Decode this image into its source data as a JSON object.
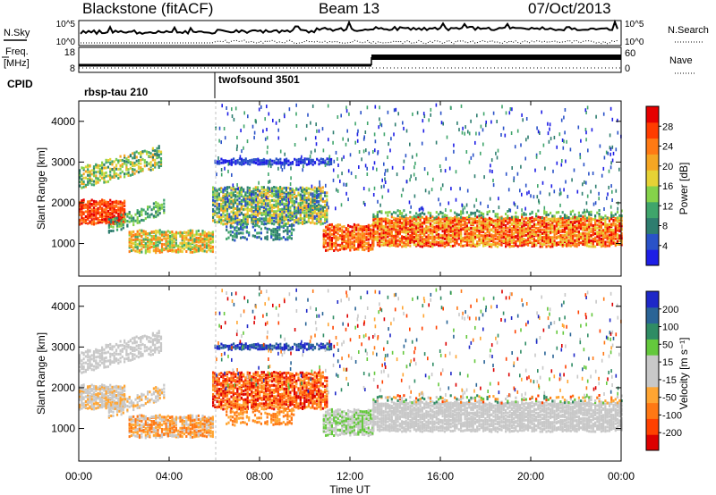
{
  "header": {
    "site": "Blackstone (fitACF)",
    "beam": "Beam 13",
    "date": "07/Oct/2013"
  },
  "left_labels": {
    "nsky": "N.Sky",
    "freq_line1": "Freq.",
    "freq_line2": "[MHz]",
    "cpid": "CPID"
  },
  "right_labels": {
    "nsearch": "N.Search",
    "nave": "Nave"
  },
  "cpid_segments": [
    "rbsp-tau 210",
    "twofsound 3501"
  ],
  "xaxis_label": "Time UT",
  "colors": {
    "power": [
      "#1e1ee6",
      "#2a52c8",
      "#2e7d6f",
      "#3fa56b",
      "#85d24a",
      "#e6d235",
      "#f5a623",
      "#ff7a14",
      "#ff3c00",
      "#e60000"
    ],
    "velocity": [
      "#1e28c8",
      "#2a6496",
      "#2f8c64",
      "#64c83c",
      "#c8c8c8",
      "#c8c8c8",
      "#ffa532",
      "#ff7814",
      "#ff4100",
      "#dc0000"
    ]
  },
  "chart_data": [
    {
      "type": "line",
      "name": "noise-panel",
      "ylabel_left": "N.Sky",
      "ylabel_right": "N.Search",
      "left_ticks": [
        "10^5",
        "10^0"
      ],
      "right_ticks": [
        "10^5",
        "10^0"
      ]
    },
    {
      "type": "line",
      "name": "frequency-panel",
      "left_ticks": [
        "18",
        "8"
      ],
      "right_ticks": [
        "60",
        "0"
      ]
    },
    {
      "type": "heatmap",
      "name": "power-panel",
      "ylabel": "Slant Range [km]",
      "yticks": [
        "1000",
        "2000",
        "3000",
        "4000"
      ],
      "ylim": [
        200,
        4500
      ],
      "colorbar_label": "Power [dB]",
      "colorbar_ticks": [
        "4",
        "8",
        "12",
        "16",
        "20",
        "24",
        "28"
      ]
    },
    {
      "type": "heatmap",
      "name": "velocity-panel",
      "ylabel": "Slant Range [km]",
      "yticks": [
        "1000",
        "2000",
        "3000",
        "4000"
      ],
      "ylim": [
        200,
        4500
      ],
      "colorbar_label": "Velocity [m s⁻¹]",
      "colorbar_ticks": [
        "200",
        "100",
        "50",
        "15",
        "-15",
        "-50",
        "-100",
        "-200"
      ]
    },
    {
      "type": "axis",
      "name": "time-axis",
      "xticks": [
        "00:00",
        "04:00",
        "08:00",
        "12:00",
        "16:00",
        "20:00",
        "00:00"
      ]
    }
  ]
}
